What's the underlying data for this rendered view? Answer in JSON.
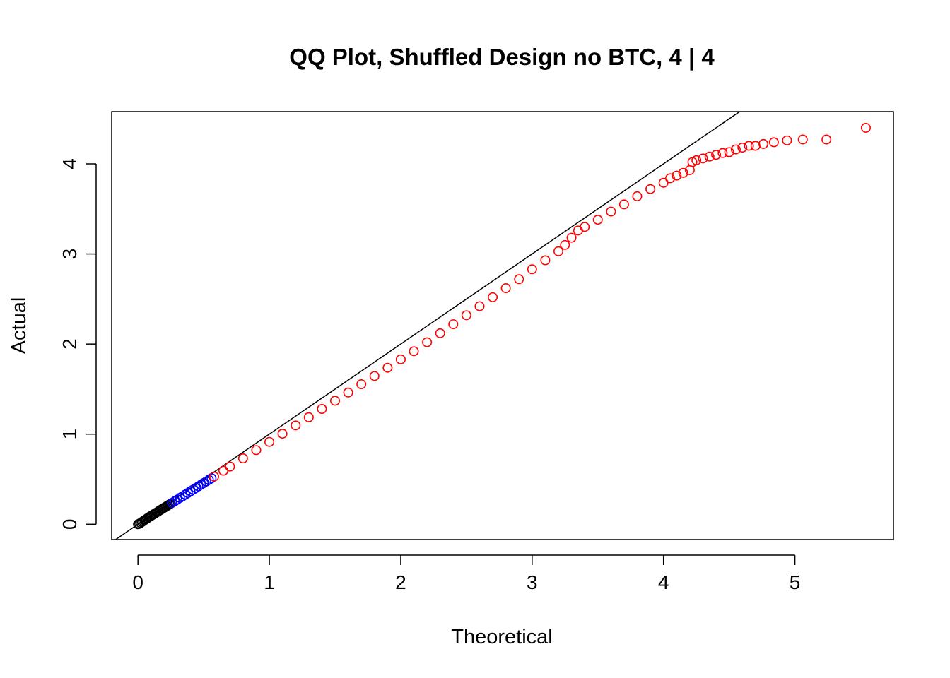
{
  "chart_data": {
    "type": "scatter",
    "title": "QQ Plot, Shuffled Design no BTC, 4 | 4",
    "xlabel": "Theoretical",
    "ylabel": "Actual",
    "xlim": [
      -0.2,
      5.75
    ],
    "ylim": [
      -0.17,
      4.58
    ],
    "x_ticks": [
      0,
      1,
      2,
      3,
      4,
      5
    ],
    "y_ticks": [
      0,
      1,
      2,
      3,
      4
    ],
    "x_tick_labels": [
      "0",
      "1",
      "2",
      "3",
      "4",
      "5"
    ],
    "y_tick_labels": [
      "0",
      "1",
      "2",
      "3",
      "4"
    ],
    "reference_line": {
      "intercept": 0,
      "slope": 1,
      "color": "#000000"
    },
    "marker": "open-circle",
    "series": [
      {
        "color": "#000000",
        "points": [
          [
            0.0,
            0.0
          ],
          [
            0.01,
            0.005
          ],
          [
            0.02,
            0.015
          ],
          [
            0.03,
            0.025
          ],
          [
            0.04,
            0.035
          ],
          [
            0.05,
            0.045
          ],
          [
            0.06,
            0.055
          ],
          [
            0.07,
            0.065
          ],
          [
            0.08,
            0.075
          ],
          [
            0.09,
            0.085
          ],
          [
            0.1,
            0.093
          ],
          [
            0.11,
            0.102
          ],
          [
            0.12,
            0.111
          ],
          [
            0.13,
            0.12
          ],
          [
            0.14,
            0.129
          ],
          [
            0.15,
            0.138
          ],
          [
            0.16,
            0.148
          ],
          [
            0.17,
            0.157
          ],
          [
            0.18,
            0.166
          ],
          [
            0.19,
            0.175
          ],
          [
            0.2,
            0.184
          ],
          [
            0.21,
            0.193
          ],
          [
            0.22,
            0.202
          ],
          [
            0.23,
            0.211
          ],
          [
            0.24,
            0.22
          ],
          [
            0.25,
            0.229
          ]
        ]
      },
      {
        "color": "#0000ff",
        "points": [
          [
            0.26,
            0.238
          ],
          [
            0.28,
            0.256
          ],
          [
            0.3,
            0.274
          ],
          [
            0.32,
            0.293
          ],
          [
            0.34,
            0.311
          ],
          [
            0.36,
            0.329
          ],
          [
            0.38,
            0.347
          ],
          [
            0.4,
            0.366
          ],
          [
            0.42,
            0.384
          ],
          [
            0.44,
            0.402
          ],
          [
            0.46,
            0.42
          ],
          [
            0.48,
            0.439
          ],
          [
            0.5,
            0.457
          ],
          [
            0.52,
            0.475
          ],
          [
            0.54,
            0.493
          ],
          [
            0.56,
            0.511
          ]
        ]
      },
      {
        "color": "#ff0000",
        "points": [
          [
            0.58,
            0.53
          ],
          [
            0.65,
            0.594
          ],
          [
            0.7,
            0.64
          ],
          [
            0.8,
            0.731
          ],
          [
            0.9,
            0.823
          ],
          [
            1.0,
            0.914
          ],
          [
            1.1,
            1.005
          ],
          [
            1.2,
            1.097
          ],
          [
            1.3,
            1.188
          ],
          [
            1.4,
            1.28
          ],
          [
            1.5,
            1.371
          ],
          [
            1.6,
            1.462
          ],
          [
            1.7,
            1.554
          ],
          [
            1.8,
            1.645
          ],
          [
            1.9,
            1.737
          ],
          [
            2.0,
            1.83
          ],
          [
            2.1,
            1.92
          ],
          [
            2.2,
            2.02
          ],
          [
            2.3,
            2.12
          ],
          [
            2.4,
            2.22
          ],
          [
            2.5,
            2.32
          ],
          [
            2.6,
            2.42
          ],
          [
            2.7,
            2.52
          ],
          [
            2.8,
            2.62
          ],
          [
            2.9,
            2.72
          ],
          [
            3.0,
            2.83
          ],
          [
            3.1,
            2.93
          ],
          [
            3.2,
            3.03
          ],
          [
            3.25,
            3.1
          ],
          [
            3.3,
            3.18
          ],
          [
            3.35,
            3.26
          ],
          [
            3.4,
            3.3
          ],
          [
            3.5,
            3.38
          ],
          [
            3.6,
            3.47
          ],
          [
            3.7,
            3.55
          ],
          [
            3.8,
            3.64
          ],
          [
            3.9,
            3.72
          ],
          [
            4.0,
            3.79
          ],
          [
            4.05,
            3.84
          ],
          [
            4.1,
            3.87
          ],
          [
            4.15,
            3.9
          ],
          [
            4.2,
            3.93
          ],
          [
            4.22,
            4.02
          ],
          [
            4.25,
            4.04
          ],
          [
            4.3,
            4.06
          ],
          [
            4.35,
            4.08
          ],
          [
            4.4,
            4.1
          ],
          [
            4.45,
            4.12
          ],
          [
            4.5,
            4.13
          ],
          [
            4.55,
            4.16
          ],
          [
            4.6,
            4.18
          ],
          [
            4.65,
            4.2
          ],
          [
            4.7,
            4.2
          ],
          [
            4.76,
            4.22
          ],
          [
            4.84,
            4.24
          ],
          [
            4.94,
            4.26
          ],
          [
            5.06,
            4.27
          ],
          [
            5.24,
            4.27
          ],
          [
            5.54,
            4.4
          ]
        ]
      }
    ],
    "grid": false,
    "legend": "none"
  }
}
